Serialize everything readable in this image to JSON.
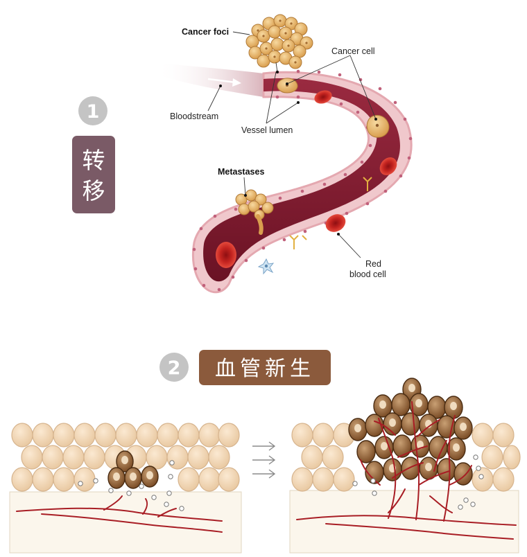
{
  "section1": {
    "number": "1",
    "title_line1": "转",
    "title_line2": "移",
    "labels": {
      "cancer_foci": "Cancer foci",
      "cancer_cell": "Cancer cell",
      "bloodstream": "Bloodstream",
      "vessel_lumen": "Vessel lumen",
      "metastases": "Metastases",
      "red_blood_cell_line1": "Red",
      "red_blood_cell_line2": "blood cell"
    }
  },
  "section2": {
    "number": "2",
    "title": "血管新生"
  },
  "colors": {
    "badge_gray": "#c4c4c4",
    "badge1_fill": "#7a5a66",
    "badge2_fill": "#8b5a3c",
    "vessel_wall": "#f0c8cc",
    "vessel_lumen": "#7e1a30",
    "red_blood_cell": "#c8201e",
    "cancer_cell": "#e3b268",
    "tissue_cell": "#f1d7b6",
    "tumor_cell": "#6a4220",
    "capillary": "#a81d24"
  }
}
